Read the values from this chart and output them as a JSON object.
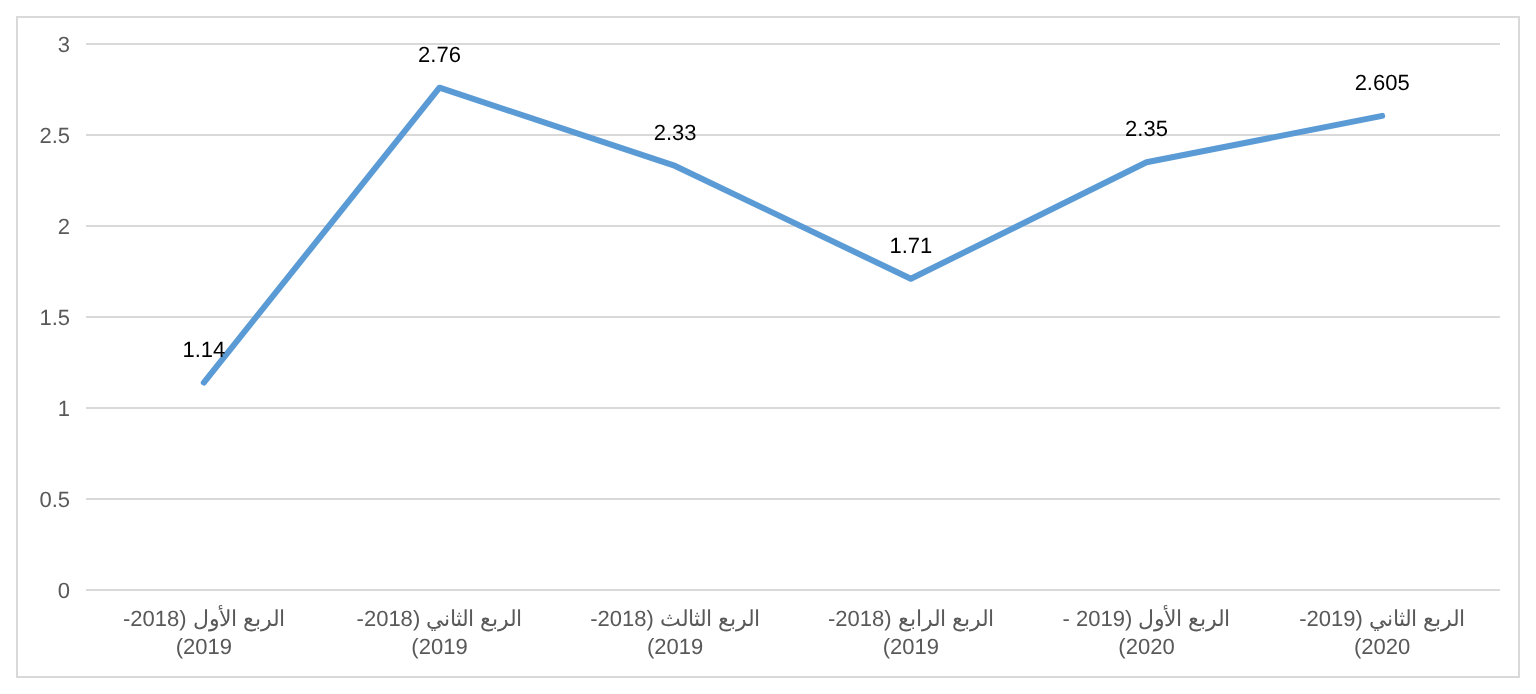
{
  "chart_data": {
    "type": "line",
    "categories": [
      "الربع الأول (2018-2019)",
      "الربع الثاني (2018-2019)",
      "الربع الثالث (2018-2019)",
      "الربع الرابع (2018-2019)",
      "الربع الأول (2019 - 2020)",
      "الربع الثاني (2019-2020)"
    ],
    "series": [
      {
        "color": "#5b9bd5",
        "values": [
          1.14,
          2.76,
          2.33,
          1.71,
          2.35,
          2.605
        ]
      }
    ],
    "ylim": [
      0,
      3
    ],
    "yticks": [
      0,
      0.5,
      1,
      1.5,
      2,
      2.5,
      3
    ],
    "grid": "y",
    "data_labels": true,
    "marker": "none",
    "line_style": "solid"
  }
}
